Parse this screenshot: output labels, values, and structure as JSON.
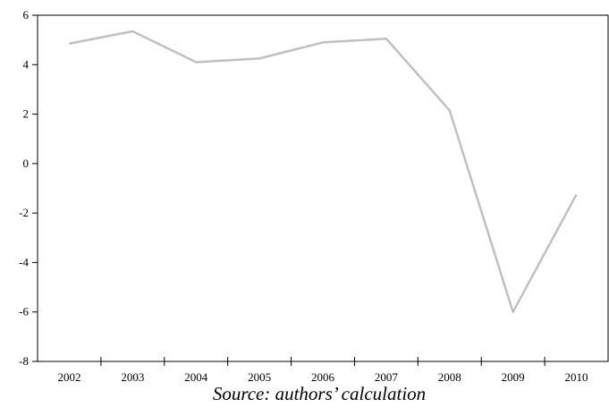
{
  "chart_data": {
    "type": "line",
    "categories": [
      "2002",
      "2003",
      "2004",
      "2005",
      "2006",
      "2007",
      "2008",
      "2009",
      "2010"
    ],
    "values": [
      4.85,
      5.35,
      4.1,
      4.25,
      4.9,
      5.05,
      2.15,
      -6.0,
      -1.25
    ],
    "color": "#c0c0c0",
    "ylim": [
      -8,
      6
    ],
    "yticks": [
      -8,
      -6,
      -4,
      -2,
      0,
      2,
      4,
      6
    ],
    "caption": "Source: authors’ calculation"
  }
}
